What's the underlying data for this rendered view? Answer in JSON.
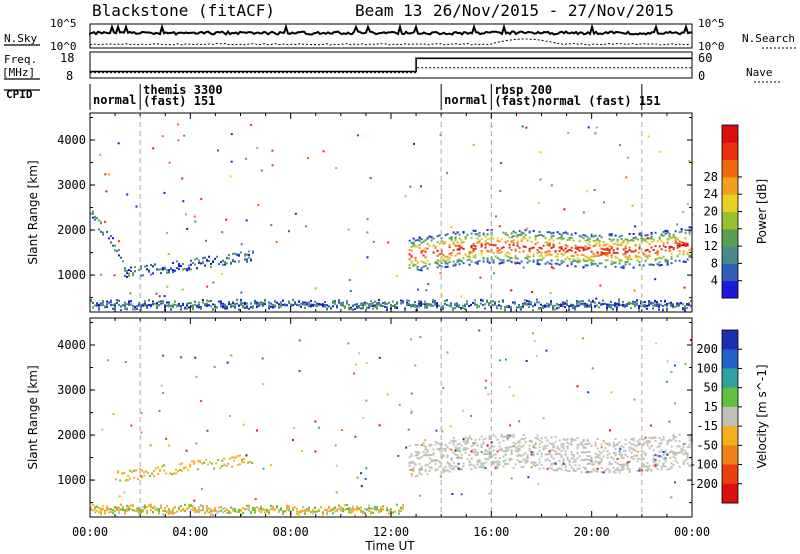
{
  "header": {
    "station": "Blackstone (fitACF)",
    "beam": "Beam 13",
    "dates": "26/Nov/2015 - 27/Nov/2015"
  },
  "top_panels": {
    "nsky_label": "N.Sky",
    "nsearch_label": "N.Search",
    "freq_label": "Freq.",
    "freq_unit": "[MHz]",
    "nave_label": "Nave",
    "cpid_label": "CPID",
    "nsky_ticks": [
      "10^5",
      "10^0"
    ],
    "nsearch_ticks": [
      "10^5",
      "10^0"
    ],
    "freq_ticks": [
      "18",
      "8"
    ],
    "nave_ticks": [
      "60",
      "0"
    ],
    "freq_series": {
      "x_hours": [
        0,
        13.0,
        13.0,
        24
      ],
      "y_mhz": [
        10.5,
        10.5,
        16.5,
        16.5
      ]
    },
    "nave_series": {
      "x_hours": [
        0,
        13.0,
        13.0,
        24
      ],
      "y": [
        12,
        12,
        25,
        25
      ]
    },
    "cpid_segments": [
      {
        "start": 0,
        "end": 2,
        "line1": "normal",
        "line2": ""
      },
      {
        "start": 2,
        "end": 14,
        "line1": "themis 3300",
        "line2": "(fast) 151"
      },
      {
        "start": 14,
        "end": 16,
        "line1": "normal",
        "line2": ""
      },
      {
        "start": 16,
        "end": 22,
        "line1": "rbsp 200",
        "line2": "(fast)normal (fast) 151"
      }
    ]
  },
  "chart_data": [
    {
      "type": "heatmap",
      "title": "",
      "xlabel": "Time UT",
      "ylabel": "Slant Range [km]",
      "xlim_hours": [
        0,
        24
      ],
      "ylim": [
        180,
        4600
      ],
      "x_tick_labels": [
        "00:00",
        "04:00",
        "08:00",
        "12:00",
        "16:00",
        "20:00",
        "00:00"
      ],
      "y_ticks": [
        1000,
        2000,
        3000,
        4000
      ],
      "colorbar": {
        "label": "Power [dB]",
        "ticks": [
          "4",
          "8",
          "12",
          "16",
          "20",
          "24",
          "28"
        ],
        "colors": [
          "#1a1ad8",
          "#2d5fb5",
          "#4a8a8a",
          "#58a050",
          "#99c030",
          "#e8d020",
          "#f0a020",
          "#f06a10",
          "#e83010",
          "#d81010"
        ]
      },
      "features": [
        {
          "region": "low-range ground scatter",
          "t_start": 0,
          "t_end": 24,
          "range_km": [
            200,
            450
          ],
          "level_db": 10
        },
        {
          "region": "early echo band",
          "t_start": 0,
          "t_end": 6.5,
          "range_km": [
            1000,
            2600
          ],
          "level_db": 6
        },
        {
          "region": "main echo band",
          "t_start": 12.7,
          "t_end": 24,
          "range_km": [
            900,
            2300
          ],
          "level_db": 22
        }
      ]
    },
    {
      "type": "heatmap",
      "title": "",
      "xlabel": "Time UT",
      "ylabel": "Slant Range [km]",
      "xlim_hours": [
        0,
        24
      ],
      "ylim": [
        180,
        4600
      ],
      "x_tick_labels": [
        "00:00",
        "04:00",
        "08:00",
        "12:00",
        "16:00",
        "20:00",
        "00:00"
      ],
      "y_ticks": [
        1000,
        2000,
        3000,
        4000
      ],
      "colorbar": {
        "label": "Velocity [m s^-1]",
        "ticks": [
          "200",
          "100",
          "50",
          "15",
          "-15",
          "-50",
          "-100",
          "-200"
        ],
        "colors": [
          "#1a30b0",
          "#2060c8",
          "#30a0a0",
          "#60c040",
          "#c0c0b8",
          "#f0b020",
          "#f08018",
          "#e84010",
          "#d81010"
        ]
      },
      "features": [
        {
          "region": "low-range ground scatter",
          "t_start": 0,
          "t_end": 12.5,
          "range_km": [
            200,
            450
          ],
          "velocity": -30
        },
        {
          "region": "early echo band",
          "t_start": 1,
          "t_end": 6.5,
          "range_km": [
            900,
            1600
          ],
          "velocity": -40
        },
        {
          "region": "main echo band",
          "t_start": 12.7,
          "t_end": 24,
          "range_km": [
            900,
            2300
          ],
          "velocity": 0
        }
      ]
    }
  ]
}
